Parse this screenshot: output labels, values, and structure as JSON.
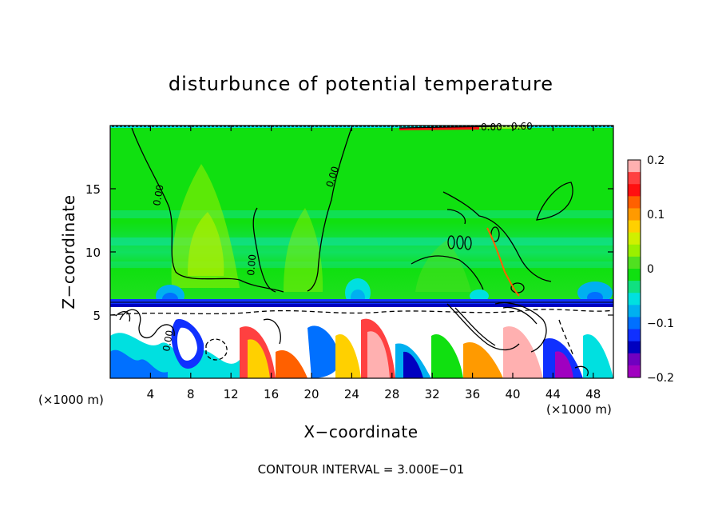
{
  "chart_data": {
    "type": "heatmap",
    "title": "disturbunce of potential temperature",
    "xlabel": "X−coordinate",
    "ylabel": "Z−coordinate",
    "x_unit_left": "(×1000 m)",
    "x_unit_right": "(×1000 m)",
    "xlim": [
      0,
      50
    ],
    "ylim": [
      0,
      20
    ],
    "x_ticks": [
      4,
      8,
      12,
      16,
      20,
      24,
      28,
      32,
      36,
      40,
      44,
      48
    ],
    "x_tick_labels": [
      "4",
      "8",
      "12",
      "16",
      "20",
      "24",
      "28",
      "32",
      "36",
      "40",
      "44",
      "48"
    ],
    "y_ticks": [
      5,
      10,
      15
    ],
    "y_tick_labels": [
      "5",
      "10",
      "15"
    ],
    "colorbar": {
      "range": [
        -0.2,
        0.2
      ],
      "ticks": [
        0.2,
        0.1,
        0,
        -0.1,
        -0.2
      ],
      "tick_labels": [
        "0.2",
        "0.1",
        "0",
        "−0.1",
        "−0.2"
      ],
      "colors": [
        "#ffb0b0",
        "#ff4040",
        "#ff1010",
        "#ff6000",
        "#ff9a00",
        "#ffd000",
        "#d0f000",
        "#9af000",
        "#50e020",
        "#10e010",
        "#10e080",
        "#00e0e0",
        "#00b0f0",
        "#0070ff",
        "#1030ff",
        "#0000c0",
        "#7000c0",
        "#a000c0"
      ]
    },
    "contour_labels": [
      "0.00",
      "0.00",
      "0.00",
      "0.00",
      "0.00",
      "0.60"
    ],
    "annotation": "CONTOUR INTERVAL = 3.000E−01"
  }
}
